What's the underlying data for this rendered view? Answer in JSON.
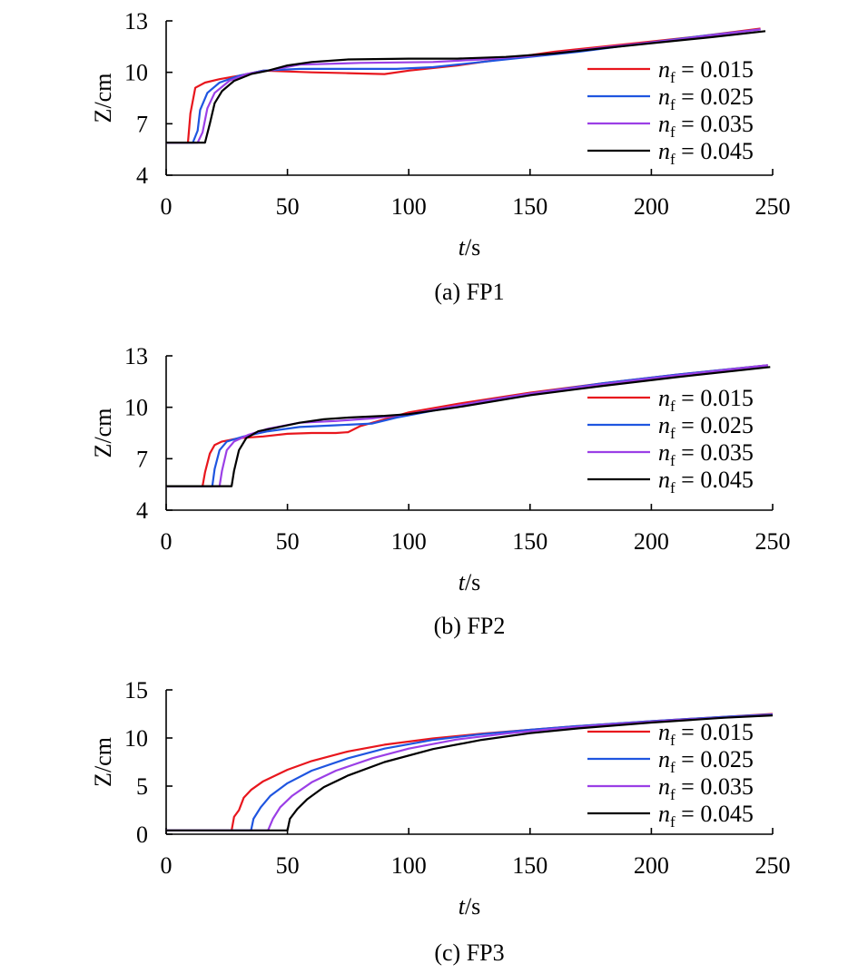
{
  "chart_data": [
    {
      "type": "line",
      "caption": "(a) FP1",
      "xlabel_italic": "t",
      "xlabel_unit": "/s",
      "ylabel": "Z/cm",
      "xlim": [
        0,
        250
      ],
      "ylim": [
        4,
        13
      ],
      "xticks": [
        "0",
        "50",
        "100",
        "150",
        "200",
        "250"
      ],
      "yticks": [
        "4",
        "7",
        "10",
        "13"
      ],
      "legend_position": "right",
      "series": [
        {
          "name": "0.015",
          "color": "#e8161d",
          "points": [
            [
              0,
              5.9
            ],
            [
              9,
              5.9
            ],
            [
              10,
              7.6
            ],
            [
              12,
              9.1
            ],
            [
              16,
              9.4
            ],
            [
              22,
              9.6
            ],
            [
              30,
              9.8
            ],
            [
              40,
              10.1
            ],
            [
              60,
              10.0
            ],
            [
              75,
              9.95
            ],
            [
              90,
              9.9
            ],
            [
              100,
              10.1
            ],
            [
              120,
              10.4
            ],
            [
              140,
              10.8
            ],
            [
              160,
              11.2
            ],
            [
              180,
              11.5
            ],
            [
              200,
              11.8
            ],
            [
              220,
              12.1
            ],
            [
              245,
              12.55
            ]
          ]
        },
        {
          "name": "0.025",
          "color": "#1f55e0",
          "points": [
            [
              0,
              5.9
            ],
            [
              11,
              5.9
            ],
            [
              13,
              6.6
            ],
            [
              14,
              7.8
            ],
            [
              17,
              8.8
            ],
            [
              22,
              9.4
            ],
            [
              30,
              9.8
            ],
            [
              40,
              10.1
            ],
            [
              55,
              10.2
            ],
            [
              75,
              10.2
            ],
            [
              95,
              10.2
            ],
            [
              110,
              10.3
            ],
            [
              130,
              10.6
            ],
            [
              150,
              10.9
            ],
            [
              170,
              11.2
            ],
            [
              200,
              11.75
            ],
            [
              220,
              12.1
            ],
            [
              245,
              12.5
            ]
          ]
        },
        {
          "name": "0.035",
          "color": "#9b3fe6",
          "points": [
            [
              0,
              5.9
            ],
            [
              13,
              5.9
            ],
            [
              15,
              6.5
            ],
            [
              17,
              7.9
            ],
            [
              20,
              8.8
            ],
            [
              26,
              9.5
            ],
            [
              33,
              9.9
            ],
            [
              42,
              10.1
            ],
            [
              55,
              10.45
            ],
            [
              80,
              10.55
            ],
            [
              110,
              10.6
            ],
            [
              130,
              10.75
            ],
            [
              150,
              10.95
            ],
            [
              180,
              11.45
            ],
            [
              210,
              11.9
            ],
            [
              245,
              12.5
            ]
          ]
        },
        {
          "name": "0.045",
          "color": "#000000",
          "points": [
            [
              0,
              5.9
            ],
            [
              16,
              5.9
            ],
            [
              18,
              7.0
            ],
            [
              20,
              8.2
            ],
            [
              23,
              8.9
            ],
            [
              28,
              9.5
            ],
            [
              35,
              9.9
            ],
            [
              42,
              10.1
            ],
            [
              50,
              10.4
            ],
            [
              60,
              10.6
            ],
            [
              75,
              10.75
            ],
            [
              100,
              10.8
            ],
            [
              120,
              10.8
            ],
            [
              140,
              10.9
            ],
            [
              160,
              11.1
            ],
            [
              180,
              11.4
            ],
            [
              200,
              11.7
            ],
            [
              225,
              12.05
            ],
            [
              247,
              12.4
            ]
          ]
        }
      ]
    },
    {
      "type": "line",
      "caption": "(b) FP2",
      "xlabel_italic": "t",
      "xlabel_unit": "/s",
      "ylabel": "Z/cm",
      "xlim": [
        0,
        250
      ],
      "ylim": [
        4,
        13
      ],
      "xticks": [
        "0",
        "50",
        "100",
        "150",
        "200",
        "250"
      ],
      "yticks": [
        "4",
        "7",
        "10",
        "13"
      ],
      "legend_position": "right",
      "series": [
        {
          "name": "0.015",
          "color": "#e8161d",
          "points": [
            [
              0,
              5.4
            ],
            [
              15,
              5.4
            ],
            [
              16,
              6.2
            ],
            [
              18,
              7.3
            ],
            [
              20,
              7.8
            ],
            [
              23,
              8.0
            ],
            [
              30,
              8.2
            ],
            [
              40,
              8.3
            ],
            [
              50,
              8.45
            ],
            [
              60,
              8.5
            ],
            [
              70,
              8.5
            ],
            [
              75,
              8.55
            ],
            [
              80,
              8.9
            ],
            [
              90,
              9.3
            ],
            [
              100,
              9.7
            ],
            [
              120,
              10.2
            ],
            [
              150,
              10.85
            ],
            [
              180,
              11.4
            ],
            [
              210,
              11.9
            ],
            [
              248,
              12.45
            ]
          ]
        },
        {
          "name": "0.025",
          "color": "#1f55e0",
          "points": [
            [
              0,
              5.4
            ],
            [
              19,
              5.4
            ],
            [
              20,
              6.4
            ],
            [
              22,
              7.5
            ],
            [
              25,
              8.0
            ],
            [
              32,
              8.3
            ],
            [
              42,
              8.6
            ],
            [
              55,
              8.85
            ],
            [
              70,
              8.95
            ],
            [
              85,
              9.05
            ],
            [
              95,
              9.4
            ],
            [
              110,
              9.8
            ],
            [
              130,
              10.35
            ],
            [
              150,
              10.8
            ],
            [
              180,
              11.4
            ],
            [
              210,
              11.9
            ],
            [
              248,
              12.45
            ]
          ]
        },
        {
          "name": "0.035",
          "color": "#9b3fe6",
          "points": [
            [
              0,
              5.4
            ],
            [
              22,
              5.4
            ],
            [
              23,
              6.3
            ],
            [
              25,
              7.5
            ],
            [
              28,
              8.0
            ],
            [
              34,
              8.4
            ],
            [
              42,
              8.75
            ],
            [
              55,
              9.1
            ],
            [
              70,
              9.2
            ],
            [
              85,
              9.35
            ],
            [
              100,
              9.6
            ],
            [
              120,
              10.1
            ],
            [
              150,
              10.8
            ],
            [
              180,
              11.35
            ],
            [
              210,
              11.85
            ],
            [
              248,
              12.45
            ]
          ]
        },
        {
          "name": "0.045",
          "color": "#000000",
          "points": [
            [
              0,
              5.4
            ],
            [
              27,
              5.4
            ],
            [
              28,
              6.3
            ],
            [
              30,
              7.5
            ],
            [
              33,
              8.2
            ],
            [
              38,
              8.6
            ],
            [
              45,
              8.8
            ],
            [
              55,
              9.1
            ],
            [
              65,
              9.3
            ],
            [
              75,
              9.4
            ],
            [
              90,
              9.5
            ],
            [
              100,
              9.6
            ],
            [
              120,
              10.0
            ],
            [
              150,
              10.7
            ],
            [
              180,
              11.25
            ],
            [
              210,
              11.75
            ],
            [
              249,
              12.35
            ]
          ]
        }
      ]
    },
    {
      "type": "line",
      "caption": "(c) FP3",
      "xlabel_italic": "t",
      "xlabel_unit": "/s",
      "ylabel": "Z/cm",
      "xlim": [
        0,
        250
      ],
      "ylim": [
        0,
        15
      ],
      "xticks": [
        "0",
        "50",
        "100",
        "150",
        "200",
        "250"
      ],
      "yticks": [
        "0",
        "5",
        "10",
        "15"
      ],
      "legend_position": "right",
      "series": [
        {
          "name": "0.015",
          "color": "#e8161d",
          "points": [
            [
              0,
              0.4
            ],
            [
              27,
              0.4
            ],
            [
              28,
              1.8
            ],
            [
              30,
              2.5
            ],
            [
              32,
              3.8
            ],
            [
              35,
              4.6
            ],
            [
              40,
              5.5
            ],
            [
              50,
              6.7
            ],
            [
              60,
              7.6
            ],
            [
              75,
              8.6
            ],
            [
              90,
              9.3
            ],
            [
              110,
              9.95
            ],
            [
              130,
              10.45
            ],
            [
              150,
              10.85
            ],
            [
              170,
              11.25
            ],
            [
              200,
              11.75
            ],
            [
              230,
              12.2
            ],
            [
              250,
              12.5
            ]
          ]
        },
        {
          "name": "0.025",
          "color": "#1f55e0",
          "points": [
            [
              0,
              0.4
            ],
            [
              35,
              0.4
            ],
            [
              36,
              1.6
            ],
            [
              39,
              2.8
            ],
            [
              43,
              4.0
            ],
            [
              50,
              5.3
            ],
            [
              60,
              6.6
            ],
            [
              75,
              7.9
            ],
            [
              90,
              8.9
            ],
            [
              110,
              9.8
            ],
            [
              130,
              10.4
            ],
            [
              150,
              10.85
            ],
            [
              170,
              11.25
            ],
            [
              200,
              11.75
            ],
            [
              230,
              12.2
            ],
            [
              250,
              12.45
            ]
          ]
        },
        {
          "name": "0.035",
          "color": "#9b3fe6",
          "points": [
            [
              0,
              0.4
            ],
            [
              42,
              0.4
            ],
            [
              44,
              1.6
            ],
            [
              47,
              2.8
            ],
            [
              52,
              4.0
            ],
            [
              60,
              5.4
            ],
            [
              70,
              6.6
            ],
            [
              85,
              7.9
            ],
            [
              100,
              8.9
            ],
            [
              120,
              9.85
            ],
            [
              140,
              10.45
            ],
            [
              160,
              10.95
            ],
            [
              180,
              11.35
            ],
            [
              210,
              11.85
            ],
            [
              250,
              12.4
            ]
          ]
        },
        {
          "name": "0.045",
          "color": "#000000",
          "points": [
            [
              0,
              0.4
            ],
            [
              50,
              0.4
            ],
            [
              51,
              1.6
            ],
            [
              54,
              2.6
            ],
            [
              58,
              3.6
            ],
            [
              65,
              4.9
            ],
            [
              75,
              6.1
            ],
            [
              90,
              7.5
            ],
            [
              110,
              8.85
            ],
            [
              130,
              9.8
            ],
            [
              150,
              10.5
            ],
            [
              170,
              11.0
            ],
            [
              200,
              11.6
            ],
            [
              230,
              12.1
            ],
            [
              250,
              12.35
            ]
          ]
        }
      ]
    }
  ]
}
